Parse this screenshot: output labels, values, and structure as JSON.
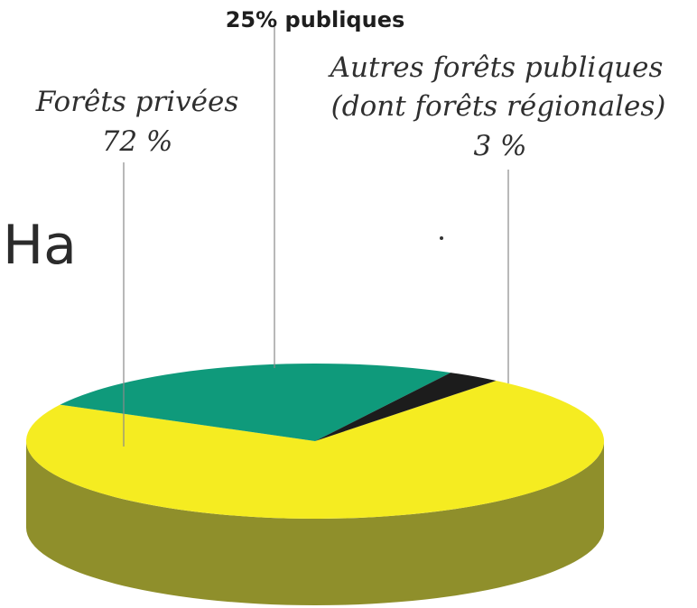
{
  "chart_data": {
    "type": "pie",
    "style": "3d",
    "title": "",
    "overlay_text": "Ha",
    "slices": [
      {
        "label_lines": [
          "Forêts privées",
          "72 %"
        ],
        "value": 72,
        "color": "#f5ec21",
        "side_color": "#8f8f2b"
      },
      {
        "label_lines": [
          "25% publiques"
        ],
        "value": 25,
        "color": "#0f9a7b",
        "side_color": "#0a6b56"
      },
      {
        "label_lines": [
          "Autres forêts publiques",
          "(dont forêts régionales)",
          "3 %"
        ],
        "value": 3,
        "color": "#1c1c1c",
        "side_color": "#111111"
      }
    ]
  }
}
